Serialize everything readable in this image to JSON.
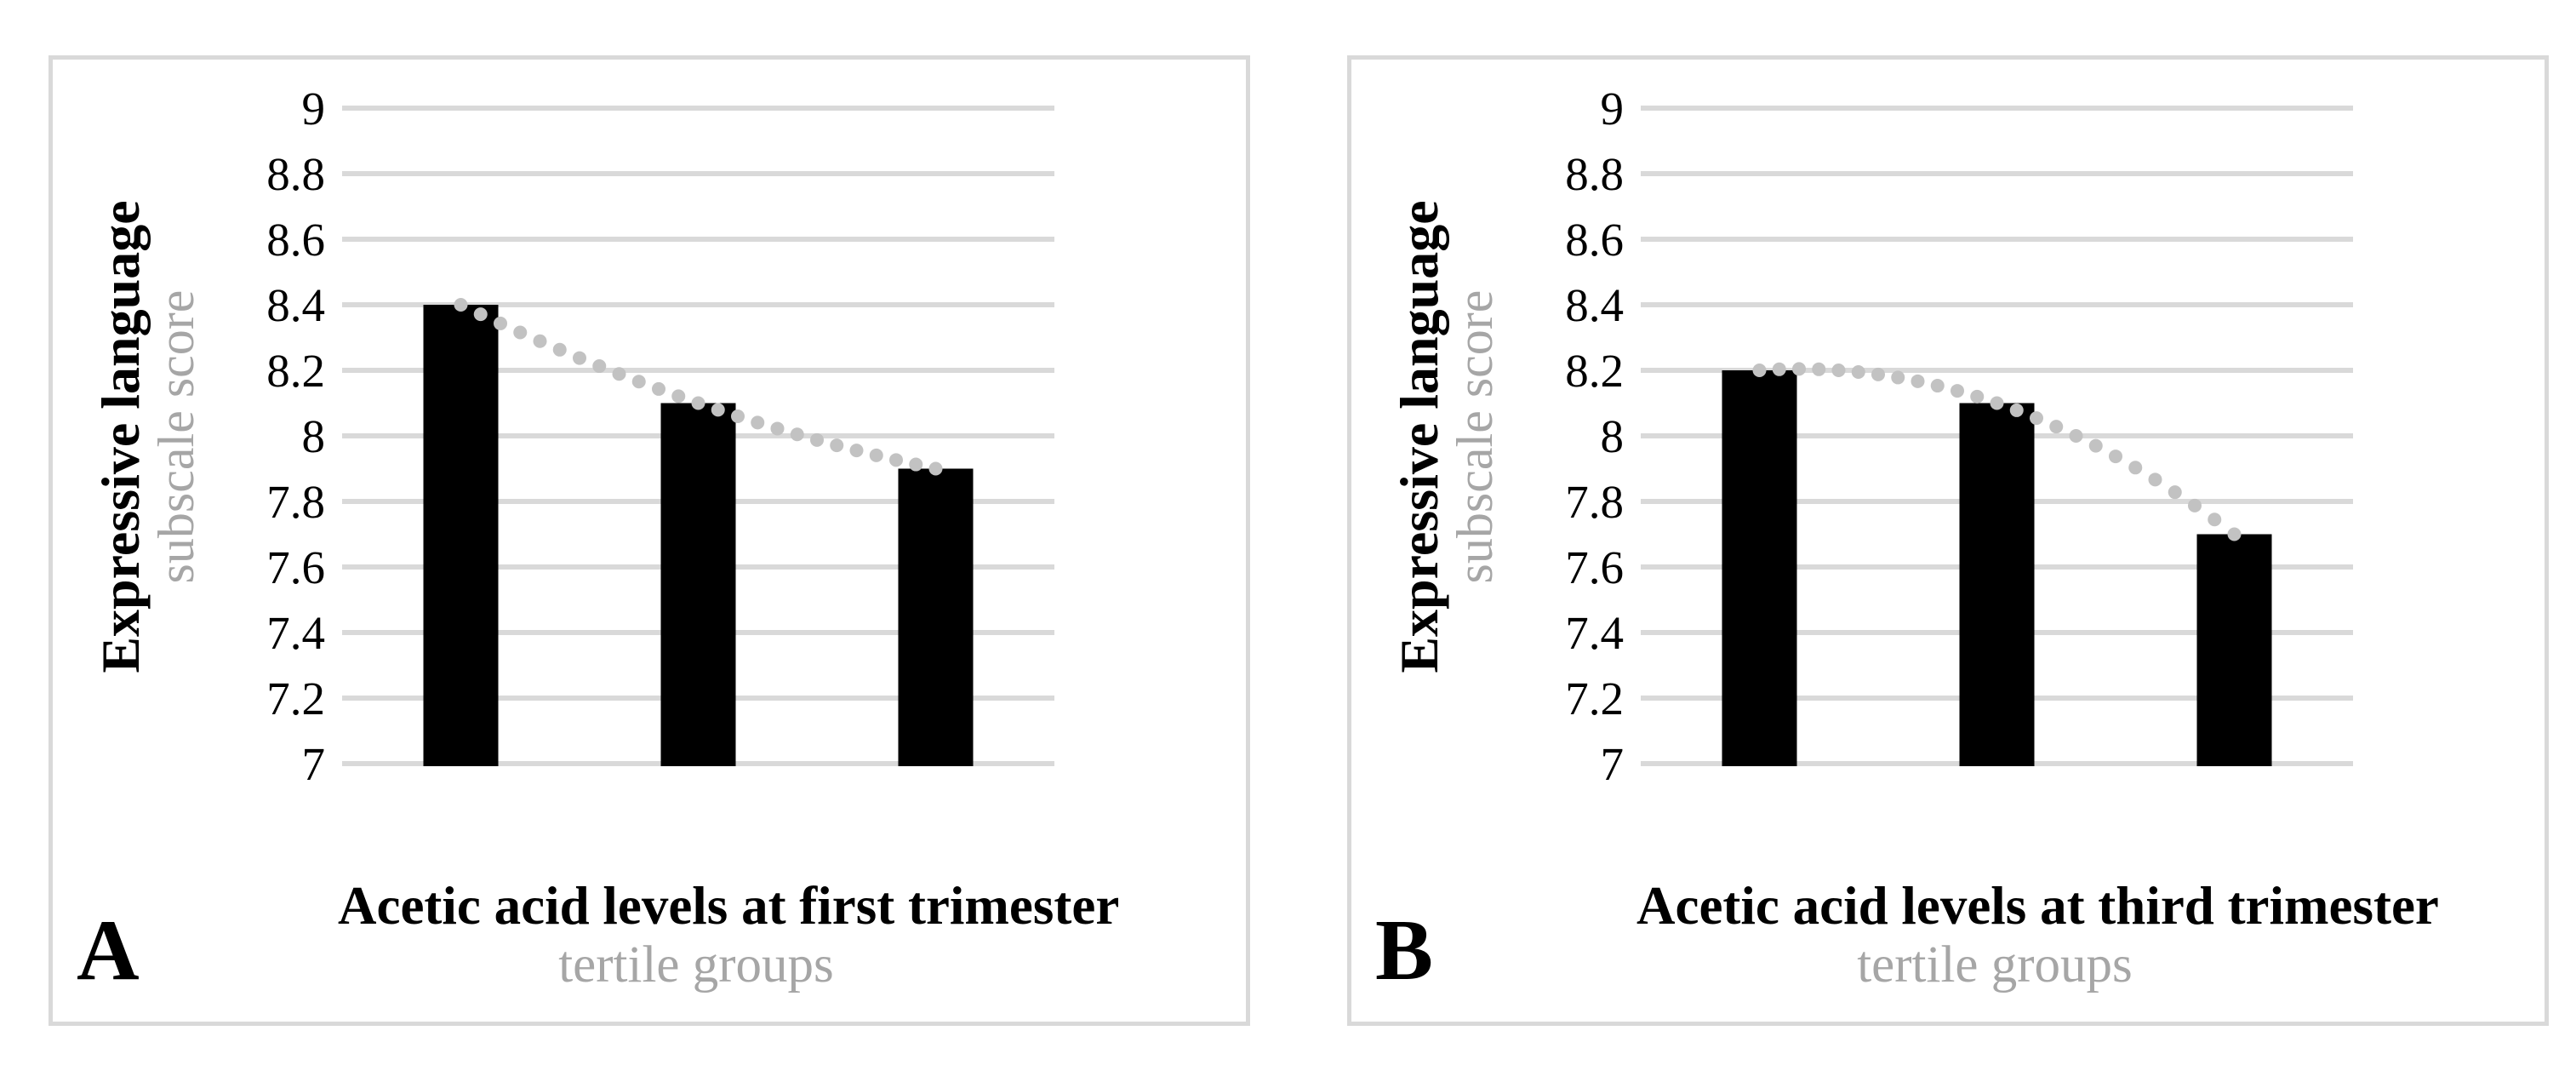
{
  "figure": {
    "description": "Two-panel bar chart figure with dotted polynomial trendlines",
    "colors": {
      "bar": "#000000",
      "gridline": "#d9d9d9",
      "panel_border": "#d9d9d9",
      "trend_dot": "#c2c2c2",
      "tick_text": "#000000",
      "title_black": "#000000",
      "title_gray": "#a6a6a6",
      "background": "#ffffff"
    }
  },
  "chart_data": [
    {
      "type": "bar",
      "panel_label": "A",
      "categories": [
        "",
        "",
        ""
      ],
      "values": [
        8.4,
        8.1,
        7.9
      ],
      "trendline": {
        "type": "polynomial",
        "order": 2,
        "style": "dotted",
        "through_values": [
          8.4,
          8.1,
          7.9
        ]
      },
      "ylabel_line1": "Expressive language",
      "ylabel_line2": "subscale score",
      "xlabel_line1": "Acetic acid levels at first trimester",
      "xlabel_line2": "tertile groups",
      "ylim": [
        7,
        9
      ],
      "ytick_step": 0.2,
      "yticks": [
        "9",
        "8.8",
        "8.6",
        "8.4",
        "8.2",
        "8",
        "7.8",
        "7.6",
        "7.4",
        "7.2",
        "7"
      ],
      "grid": true,
      "legend": "none",
      "x_tick_labels_visible": false
    },
    {
      "type": "bar",
      "panel_label": "B",
      "categories": [
        "",
        "",
        ""
      ],
      "values": [
        8.2,
        8.1,
        7.7
      ],
      "trendline": {
        "type": "polynomial",
        "order": 2,
        "style": "dotted",
        "through_values": [
          8.2,
          8.1,
          7.7
        ]
      },
      "ylabel_line1": "Expressive language",
      "ylabel_line2": "subscale score",
      "xlabel_line1": "Acetic acid levels at third trimester",
      "xlabel_line2": "tertile groups",
      "ylim": [
        7,
        9
      ],
      "ytick_step": 0.2,
      "yticks": [
        "9",
        "8.8",
        "8.6",
        "8.4",
        "8.2",
        "8",
        "7.8",
        "7.6",
        "7.4",
        "7.2",
        "7"
      ],
      "grid": true,
      "legend": "none",
      "x_tick_labels_visible": false
    }
  ]
}
